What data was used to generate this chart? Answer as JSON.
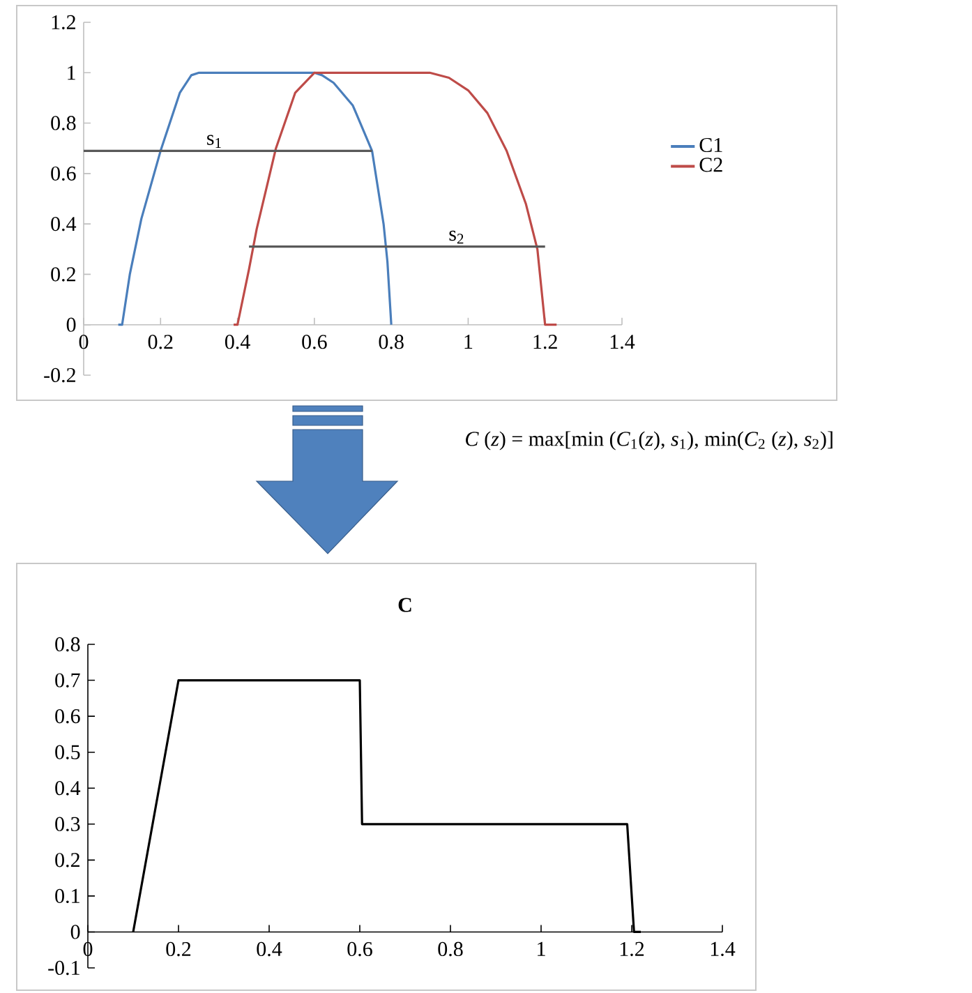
{
  "chart_data": [
    {
      "type": "line",
      "legend": "right",
      "xlim": [
        0,
        1.4
      ],
      "ylim": [
        -0.2,
        1.2
      ],
      "xticks": [
        0,
        0.2,
        0.4,
        0.6,
        0.8,
        1,
        1.2,
        1.4
      ],
      "yticks": [
        -0.2,
        0,
        0.2,
        0.4,
        0.6,
        0.8,
        1,
        1.2
      ],
      "annotations": [
        "*C* (*z*) = max[min (*C*$_{1}$(*z*), *s*$_{1}$), min(*C*$_{2}$ (*z*), *s*$_{2}$)]",
        {
          "text": "s$_{1}$",
          "x": 0.34,
          "y": 0.69
        },
        {
          "text": "s$_{2}$",
          "x": 0.97,
          "y": 0.31
        }
      ],
      "series": [
        {
          "name": "C1",
          "color": "#4a7ebb",
          "x": [
            0.09,
            0.1,
            0.12,
            0.15,
            0.2,
            0.25,
            0.28,
            0.3,
            0.6,
            0.62,
            0.65,
            0.7,
            0.75,
            0.78,
            0.79,
            0.8
          ],
          "values": [
            0,
            0,
            0.2,
            0.42,
            0.69,
            0.92,
            0.99,
            1,
            1,
            0.99,
            0.96,
            0.87,
            0.69,
            0.4,
            0.25,
            0
          ]
        },
        {
          "name": "C2",
          "color": "#be4b48",
          "x": [
            0.39,
            0.4,
            0.43,
            0.45,
            0.5,
            0.55,
            0.6,
            0.9,
            0.95,
            1.0,
            1.05,
            1.1,
            1.15,
            1.18,
            1.2,
            1.23
          ],
          "values": [
            0,
            0,
            0.22,
            0.38,
            0.7,
            0.92,
            1,
            1,
            0.98,
            0.93,
            0.84,
            0.69,
            0.48,
            0.3,
            0,
            0
          ]
        },
        {
          "color": "#595959",
          "x": [
            0,
            0.75
          ],
          "values": [
            0.69,
            0.69
          ]
        },
        {
          "color": "#595959",
          "x": [
            0.43,
            1.2
          ],
          "values": [
            0.31,
            0.31
          ]
        }
      ]
    },
    {
      "type": "line",
      "title": "C",
      "xlim": [
        0,
        1.4
      ],
      "ylim": [
        -0.1,
        0.8
      ],
      "xticks": [
        0,
        0.2,
        0.4,
        0.6,
        0.8,
        1,
        1.2,
        1.4
      ],
      "yticks": [
        -0.1,
        0,
        0.1,
        0.2,
        0.3,
        0.4,
        0.5,
        0.6,
        0.7,
        0.8
      ],
      "series": [
        {
          "color": "#000000",
          "x": [
            0.1,
            0.2,
            0.6,
            0.605,
            1.19,
            1.205,
            1.22
          ],
          "values": [
            0,
            0.7,
            0.7,
            0.3,
            0.3,
            0,
            0
          ]
        }
      ]
    }
  ]
}
